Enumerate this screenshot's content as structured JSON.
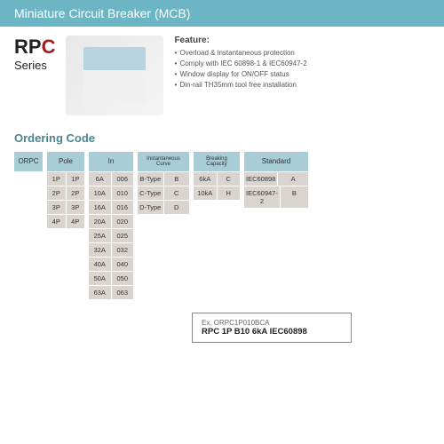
{
  "title": "Miniature Circuit Breaker (MCB)",
  "series": {
    "prefix": "RP",
    "accent": "C",
    "sub": "Series"
  },
  "feature": {
    "title": "Feature:",
    "items": [
      "Overload & instantaneous protection",
      "Comply with IEC 60898-1 & IEC60947-2",
      "Window display for ON/OFF status",
      "Din-rail TH35mm tool free installation"
    ]
  },
  "ordering_title": "Ordering Code",
  "cols": {
    "orpc": {
      "header": "ORPC"
    },
    "pole": {
      "header": "Pole",
      "rows": [
        [
          "1P",
          "1P"
        ],
        [
          "2P",
          "2P"
        ],
        [
          "3P",
          "3P"
        ],
        [
          "4P",
          "4P"
        ]
      ]
    },
    "in": {
      "header": "In",
      "rows": [
        [
          "6A",
          "006"
        ],
        [
          "10A",
          "010"
        ],
        [
          "16A",
          "016"
        ],
        [
          "20A",
          "020"
        ],
        [
          "25A",
          "025"
        ],
        [
          "32A",
          "032"
        ],
        [
          "40A",
          "040"
        ],
        [
          "50A",
          "050"
        ],
        [
          "63A",
          "063"
        ]
      ]
    },
    "curve": {
      "header": "Instantaneous Curve",
      "rows": [
        [
          "B-Type",
          "B"
        ],
        [
          "C-Type",
          "C"
        ],
        [
          "D-Type",
          "D"
        ]
      ]
    },
    "break": {
      "header": "Breaking Capacity",
      "rows": [
        [
          "6kA",
          "C"
        ],
        [
          "10kA",
          "H"
        ]
      ]
    },
    "standard": {
      "header": "Standard",
      "rows": [
        [
          "IEC60898",
          "A"
        ],
        [
          "IEC60947-2",
          "B"
        ]
      ]
    }
  },
  "example": {
    "label": "Ex. ORPC1P010BCA",
    "code": "RPC 1P B10 6kA IEC60898"
  }
}
